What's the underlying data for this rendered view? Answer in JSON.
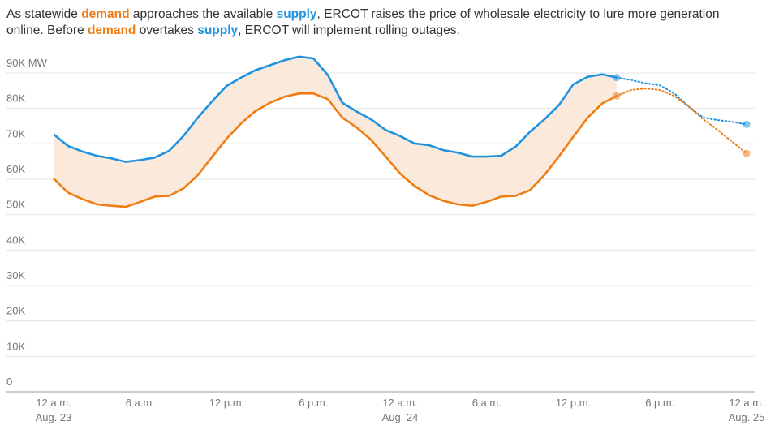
{
  "chart_data": {
    "type": "line",
    "subtitle_parts": [
      {
        "text": "As statewide "
      },
      {
        "text": "demand",
        "color": "#f07c14"
      },
      {
        "text": " approaches the available "
      },
      {
        "text": "supply",
        "color": "#1f93e0"
      },
      {
        "text": ", ERCOT raises the price of wholesale electricity to lure more generation online. Before "
      },
      {
        "text": "demand",
        "color": "#f07c14"
      },
      {
        "text": " overtakes "
      },
      {
        "text": "supply",
        "color": "#1f93e0"
      },
      {
        "text": ", ERCOT will implement rolling outages."
      }
    ],
    "x": [
      0,
      1,
      2,
      3,
      4,
      5,
      6,
      7,
      8,
      9,
      10,
      11,
      12,
      13,
      14,
      15,
      16,
      17,
      18,
      19,
      20,
      21,
      22,
      23,
      24,
      25,
      26,
      27,
      28,
      29,
      30,
      31,
      32,
      33,
      34,
      35,
      36,
      37,
      38,
      39,
      40,
      41,
      42,
      43,
      44,
      45,
      46,
      47,
      48
    ],
    "xlim": [
      0,
      48
    ],
    "xticks": [
      {
        "value": 0,
        "label": "12 a.m.",
        "date": "Aug. 23"
      },
      {
        "value": 6,
        "label": "6 a.m."
      },
      {
        "value": 12,
        "label": "12 p.m."
      },
      {
        "value": 18,
        "label": "6 p.m."
      },
      {
        "value": 24,
        "label": "12 a.m.",
        "date": "Aug. 24"
      },
      {
        "value": 30,
        "label": "6 a.m."
      },
      {
        "value": 36,
        "label": "12 p.m."
      },
      {
        "value": 42,
        "label": "6 p.m."
      },
      {
        "value": 48,
        "label": "12 a.m.",
        "date": "Aug. 25"
      }
    ],
    "ylim": [
      0,
      100000
    ],
    "yticks": [
      0,
      {
        "value": 10000,
        "label": "10K"
      },
      {
        "value": 20000,
        "label": "20K"
      },
      {
        "value": 30000,
        "label": "30K"
      },
      {
        "value": 40000,
        "label": "40K"
      },
      {
        "value": 50000,
        "label": "50K"
      },
      {
        "value": 60000,
        "label": "60K"
      },
      {
        "value": 70000,
        "label": "70K"
      },
      {
        "value": 80000,
        "label": "80K"
      },
      {
        "value": 90000,
        "label": "90K MW"
      }
    ],
    "grid": true,
    "fill_between": {
      "color": "#fbeadc"
    },
    "series": [
      {
        "name": "supply",
        "color": "#1f93e0",
        "dotted": false,
        "values": [
          72700,
          69400,
          67800,
          66600,
          65900,
          64900,
          65400,
          66100,
          68000,
          72200,
          77400,
          82100,
          86400,
          88700,
          90800,
          92200,
          93600,
          94600,
          94100,
          89400,
          81600,
          79100,
          76900,
          73900,
          72200,
          70100,
          69600,
          68200,
          67500,
          66400,
          66400,
          66600,
          69200,
          73400,
          76900,
          80900,
          86800,
          88900,
          89600,
          88700,
          null,
          null,
          null,
          null,
          null,
          null,
          null,
          null,
          null
        ]
      },
      {
        "name": "demand",
        "color": "#f07c14",
        "dotted": false,
        "values": [
          60200,
          56200,
          54400,
          52900,
          52500,
          52200,
          53600,
          55100,
          55300,
          57400,
          61200,
          66400,
          71500,
          75800,
          79300,
          81600,
          83300,
          84200,
          84200,
          82600,
          77400,
          74600,
          71100,
          66400,
          61600,
          58100,
          55500,
          53900,
          52900,
          52500,
          53600,
          55100,
          55300,
          56900,
          61200,
          66400,
          72000,
          77400,
          81400,
          83500,
          null,
          null,
          null,
          null,
          null,
          null,
          null,
          null,
          null
        ]
      },
      {
        "name": "supply",
        "color": "#1f93e0",
        "dotted": true,
        "values": [
          null,
          null,
          null,
          null,
          null,
          null,
          null,
          null,
          null,
          null,
          null,
          null,
          null,
          null,
          null,
          null,
          null,
          null,
          null,
          null,
          null,
          null,
          null,
          null,
          null,
          null,
          null,
          null,
          null,
          null,
          null,
          null,
          null,
          null,
          null,
          null,
          null,
          null,
          null,
          88700,
          88000,
          87100,
          86500,
          84200,
          80500,
          77400,
          76700,
          76200,
          75500
        ]
      },
      {
        "name": "demand",
        "color": "#f07c14",
        "dotted": true,
        "values": [
          null,
          null,
          null,
          null,
          null,
          null,
          null,
          null,
          null,
          null,
          null,
          null,
          null,
          null,
          null,
          null,
          null,
          null,
          null,
          null,
          null,
          null,
          null,
          null,
          null,
          null,
          null,
          null,
          null,
          null,
          null,
          null,
          null,
          null,
          null,
          null,
          null,
          null,
          null,
          83500,
          85200,
          85600,
          85200,
          83500,
          80500,
          76900,
          73900,
          70600,
          67300
        ]
      }
    ]
  }
}
